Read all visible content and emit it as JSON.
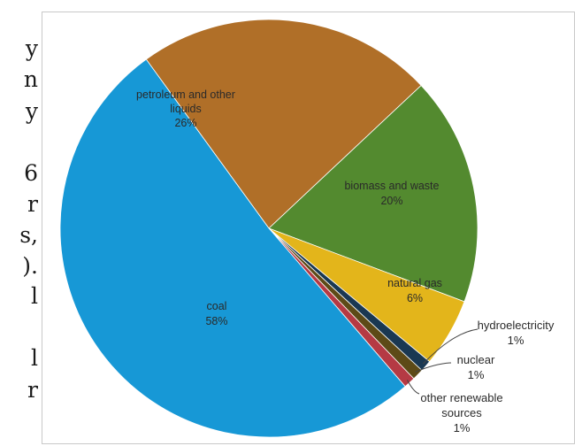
{
  "side_text": [
    "y",
    "n",
    "y",
    "6",
    "r",
    "s,",
    ").",
    "l",
    "l",
    "r"
  ],
  "chart_data": {
    "type": "pie",
    "title": "",
    "slices": [
      {
        "label": "petroleum and other liquids",
        "value": 26,
        "display": "26%",
        "color": "#b06f28"
      },
      {
        "label": "biomass and waste",
        "value": 20,
        "display": "20%",
        "color": "#538a2f"
      },
      {
        "label": "natural gas",
        "value": 6,
        "display": "6%",
        "color": "#e3b51b"
      },
      {
        "label": "hydroelectricity",
        "value": 1,
        "display": "1%",
        "color": "#1a3852"
      },
      {
        "label": "nuclear",
        "value": 1,
        "display": "1%",
        "color": "#5d4a17"
      },
      {
        "label": "other renewable sources",
        "value": 1,
        "display": "1%",
        "color": "#b53a44"
      },
      {
        "label": "coal",
        "value": 58,
        "display": "58%",
        "color": "#1798d6"
      }
    ]
  }
}
